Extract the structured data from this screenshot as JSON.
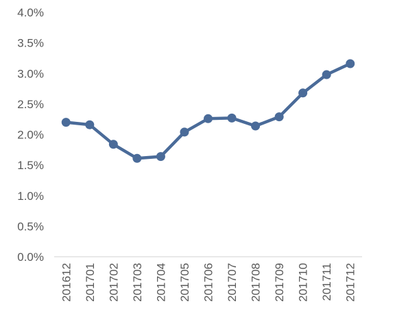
{
  "chart_data": {
    "type": "line",
    "title": "",
    "xlabel": "",
    "ylabel": "",
    "categories": [
      "201612",
      "201701",
      "201702",
      "201703",
      "201704",
      "201705",
      "201706",
      "201707",
      "201708",
      "201709",
      "201710",
      "201711",
      "201712"
    ],
    "y_ticks": [
      "0.0%",
      "0.5%",
      "1.0%",
      "1.5%",
      "2.0%",
      "2.5%",
      "3.0%",
      "3.5%",
      "4.0%"
    ],
    "ylim": [
      0,
      4.0
    ],
    "y_unit": "%",
    "grid": false,
    "legend": "none",
    "series": [
      {
        "values": [
          2.2,
          2.16,
          1.84,
          1.61,
          1.64,
          2.04,
          2.26,
          2.27,
          2.14,
          2.29,
          2.68,
          2.98,
          3.16
        ],
        "color": "#4a6b99"
      }
    ],
    "axis_color": "#d9d9d9"
  }
}
